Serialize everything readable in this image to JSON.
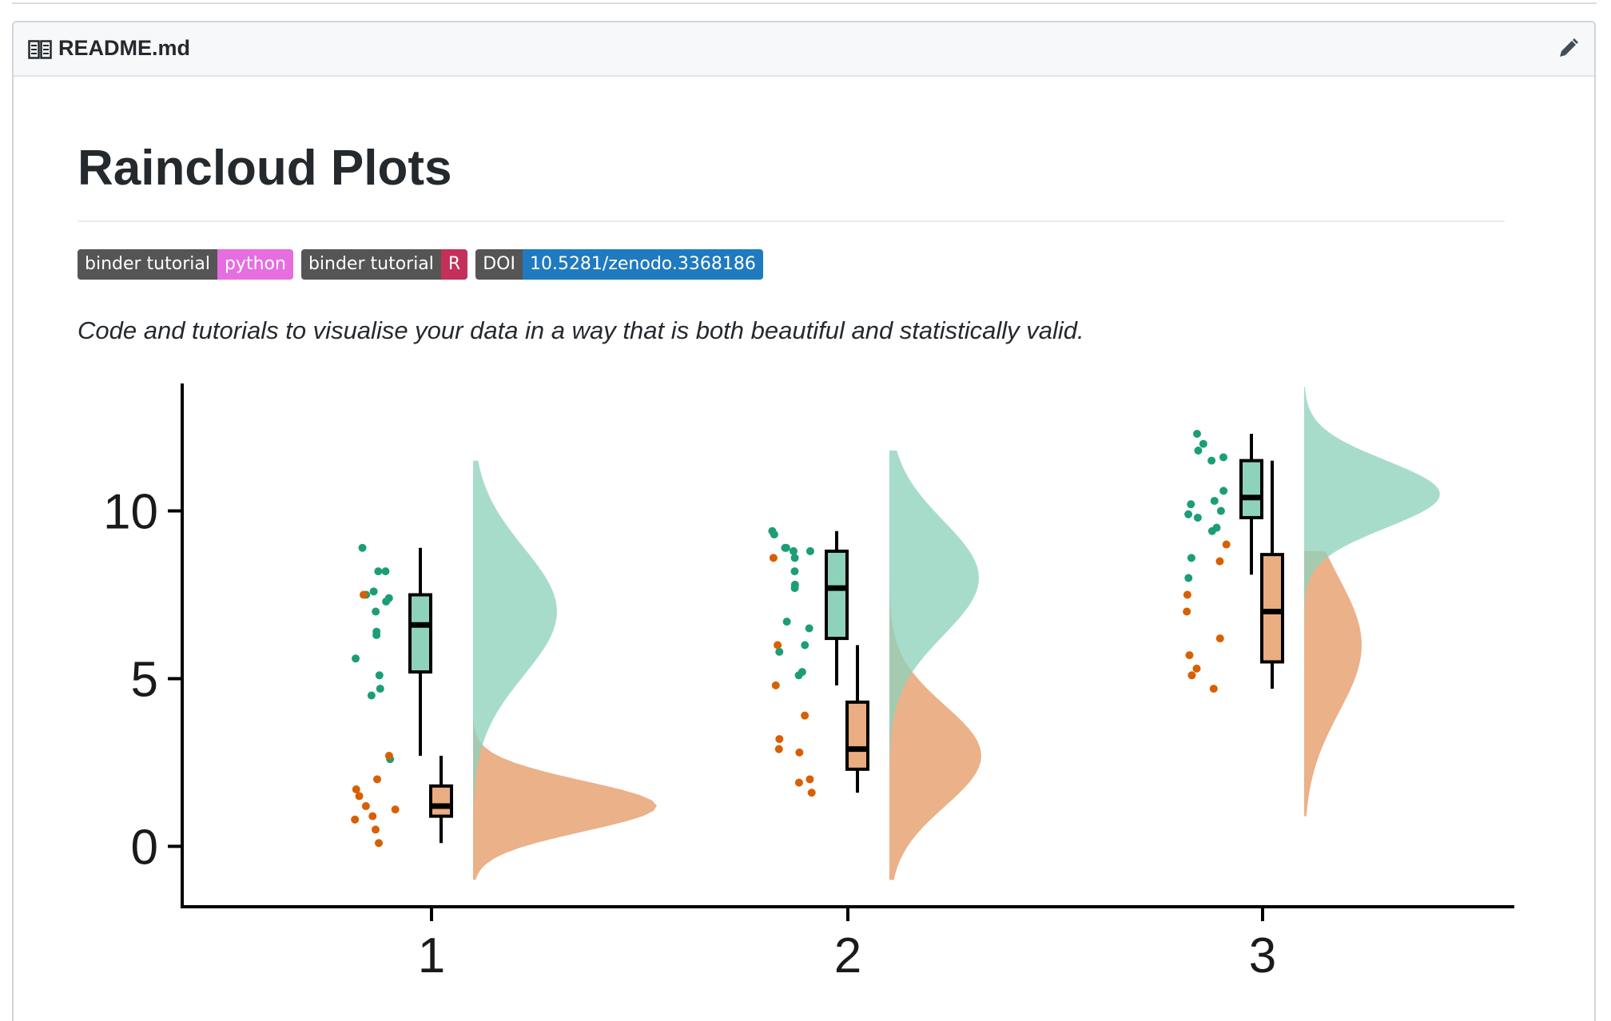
{
  "readme": {
    "file_name": "README.md",
    "book_icon": "book-icon",
    "edit_icon": "pencil-icon"
  },
  "page": {
    "title": "Raincloud Plots",
    "description": "Code and tutorials to visualise your data in a way that is both beautiful and statistically valid."
  },
  "badges": [
    {
      "left": "binder tutorial",
      "right": "python",
      "color": "#e66ee0"
    },
    {
      "left": "binder tutorial",
      "right": "R",
      "color": "#c4305a"
    },
    {
      "left": "DOI",
      "right": "10.5281/zenodo.3368186",
      "color": "#1f7ac0"
    }
  ],
  "chart_data": {
    "type": "raincloud",
    "title": "",
    "xlabel": "",
    "ylabel": "",
    "ylim": [
      -1.8,
      13.8
    ],
    "yticks": [
      0,
      5,
      10
    ],
    "categories": [
      "1",
      "2",
      "3"
    ],
    "colors": {
      "green": "#1b9e77",
      "orange": "#d95f02",
      "green_fill": "#8fd2bb",
      "orange_fill": "#eaad82",
      "overlap": "#b8965a"
    },
    "series": [
      {
        "name": "green",
        "box": [
          {
            "category": "1",
            "whisker_low": 2.7,
            "q1": 5.2,
            "median": 6.6,
            "q3": 7.5,
            "whisker_high": 8.9
          },
          {
            "category": "2",
            "whisker_low": 4.8,
            "q1": 6.2,
            "median": 7.7,
            "q3": 8.8,
            "whisker_high": 9.4
          },
          {
            "category": "3",
            "whisker_low": 8.1,
            "q1": 9.8,
            "median": 10.4,
            "q3": 11.5,
            "whisker_high": 12.3
          }
        ],
        "points": [
          [
            8.9,
            8.2,
            8.2,
            7.6,
            7.5,
            7.4,
            7.3,
            7.0,
            6.4,
            6.3,
            5.6,
            5.1,
            4.7,
            4.5,
            2.6
          ],
          [
            9.4,
            9.3,
            8.9,
            8.9,
            8.8,
            8.8,
            8.6,
            8.2,
            7.8,
            7.7,
            6.7,
            6.5,
            6.0,
            5.8,
            5.2,
            5.1
          ],
          [
            12.3,
            12.0,
            11.8,
            11.6,
            11.5,
            10.6,
            10.3,
            10.2,
            10.0,
            9.9,
            9.8,
            9.5,
            9.4,
            8.6,
            8.0
          ]
        ],
        "density_peak": [
          7.0,
          8.0,
          10.5
        ]
      },
      {
        "name": "orange",
        "box": [
          {
            "category": "1",
            "whisker_low": 0.1,
            "q1": 0.9,
            "median": 1.2,
            "q3": 1.8,
            "whisker_high": 2.7
          },
          {
            "category": "2",
            "whisker_low": 1.6,
            "q1": 2.3,
            "median": 2.9,
            "q3": 4.3,
            "whisker_high": 6.0
          },
          {
            "category": "3",
            "whisker_low": 4.7,
            "q1": 5.5,
            "median": 7.0,
            "q3": 8.7,
            "whisker_high": 11.5
          }
        ],
        "points": [
          [
            7.5,
            2.7,
            2.0,
            1.7,
            1.5,
            1.2,
            1.1,
            0.9,
            0.8,
            0.5,
            0.1
          ],
          [
            8.6,
            6.0,
            4.8,
            3.9,
            3.2,
            2.9,
            2.8,
            2.0,
            1.9,
            1.6
          ],
          [
            9.0,
            8.5,
            7.5,
            7.0,
            6.2,
            5.7,
            5.3,
            5.1,
            4.7
          ]
        ],
        "density_peak": [
          1.2,
          2.7,
          6.0
        ]
      }
    ]
  }
}
